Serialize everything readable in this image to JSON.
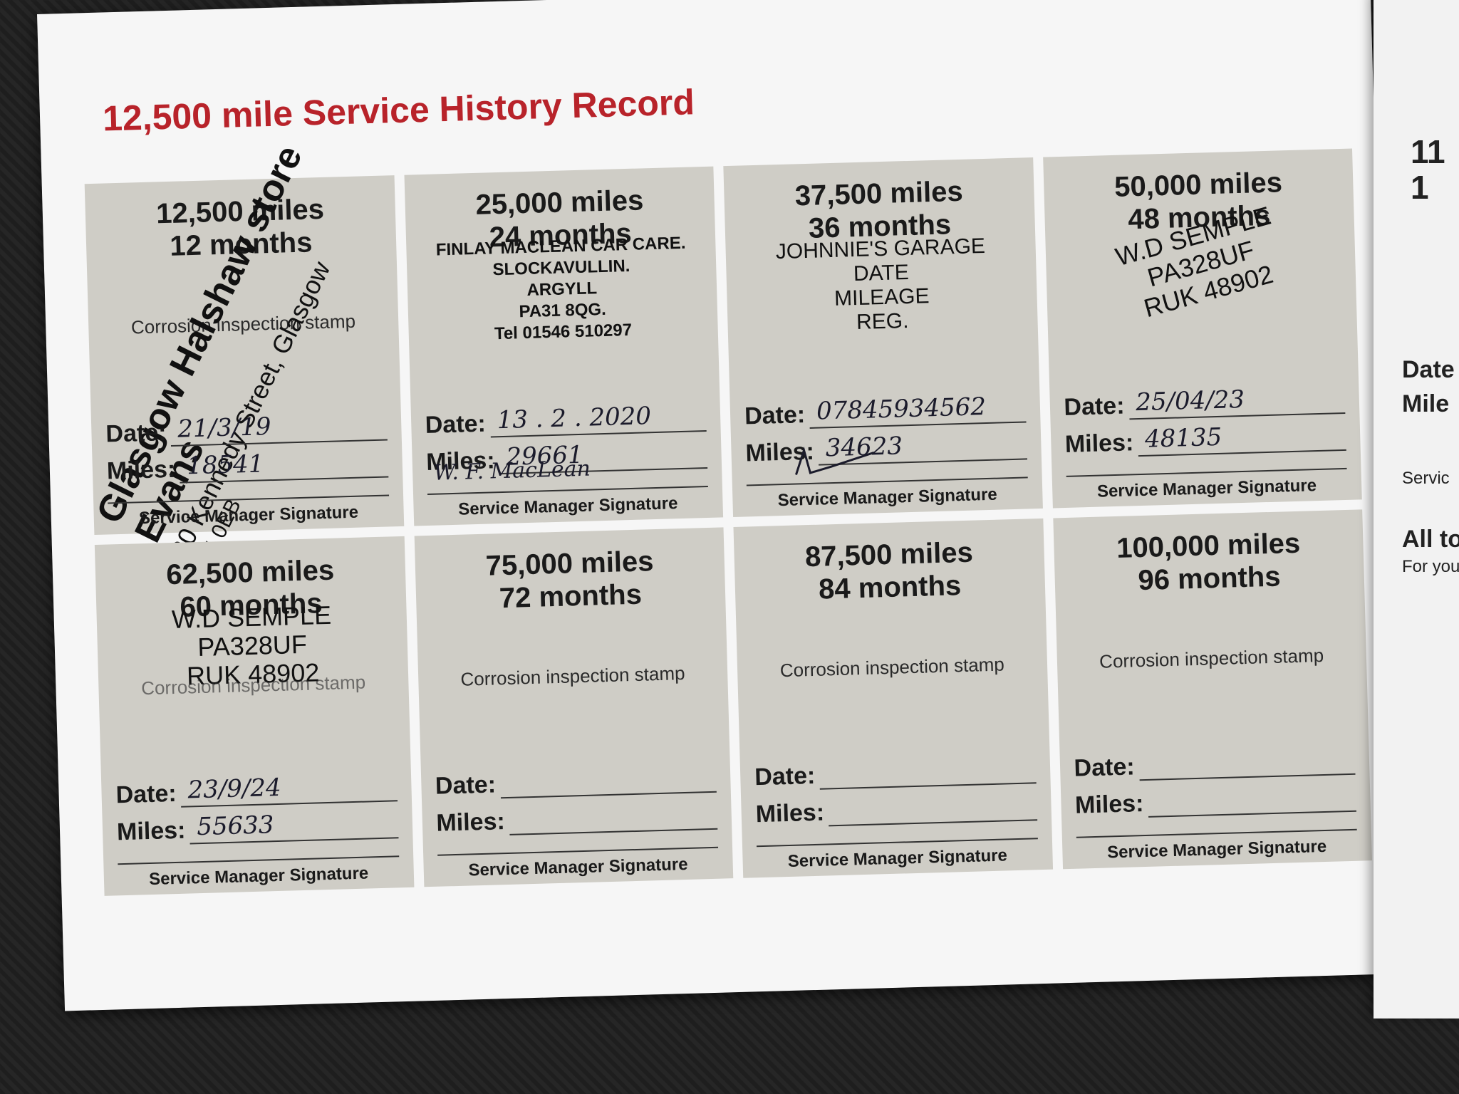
{
  "title": "12,500 mile Service History Record",
  "labels": {
    "corrosion": "Corrosion inspection stamp",
    "date": "Date:",
    "miles": "Miles:",
    "signature": "Service Manager Signature"
  },
  "boxes": [
    {
      "miles": "12,500 miles",
      "months": "12 months",
      "date": "21/3/19",
      "mileage": "18541"
    },
    {
      "miles": "25,000 miles",
      "months": "24 months",
      "date": "13 . 2 . 2020",
      "mileage": "29661",
      "signature": "W. F. MacLean"
    },
    {
      "miles": "37,500 miles",
      "months": "36 months",
      "date": "07845934562",
      "mileage": "34623"
    },
    {
      "miles": "50,000 miles",
      "months": "48 months",
      "date": "25/04/23",
      "mileage": "48135"
    },
    {
      "miles": "62,500 miles",
      "months": "60 months",
      "date": "23/9/24",
      "mileage": "55633"
    },
    {
      "miles": "75,000 miles",
      "months": "72 months",
      "date": "",
      "mileage": ""
    },
    {
      "miles": "87,500 miles",
      "months": "84 months",
      "date": "",
      "mileage": ""
    },
    {
      "miles": "100,000 miles",
      "months": "96 months",
      "date": "",
      "mileage": ""
    }
  ],
  "stamps": {
    "evans": {
      "l1": "Glasgow Halshaw store",
      "l2": "Evans",
      "l3": "20 Kennedy Street, Glasgow",
      "l4": "G4 0EB"
    },
    "finlay": [
      "FINLAY MACLEAN CAR CARE.",
      "SLOCKAVULLIN.",
      "ARGYLL",
      "PA31 8QG.",
      "Tel 01546 510297"
    ],
    "johnnie": [
      "JOHNNIE'S GARAGE",
      "DATE",
      "MILEAGE",
      "REG."
    ],
    "semple": [
      "W.D SEMPLE",
      "PA328UF",
      "RUK 48902"
    ]
  },
  "next_page": {
    "heading": "11\n1",
    "date": "Date",
    "miles": "Mile",
    "service": "Servic",
    "all": "All to",
    "for": "For your"
  }
}
